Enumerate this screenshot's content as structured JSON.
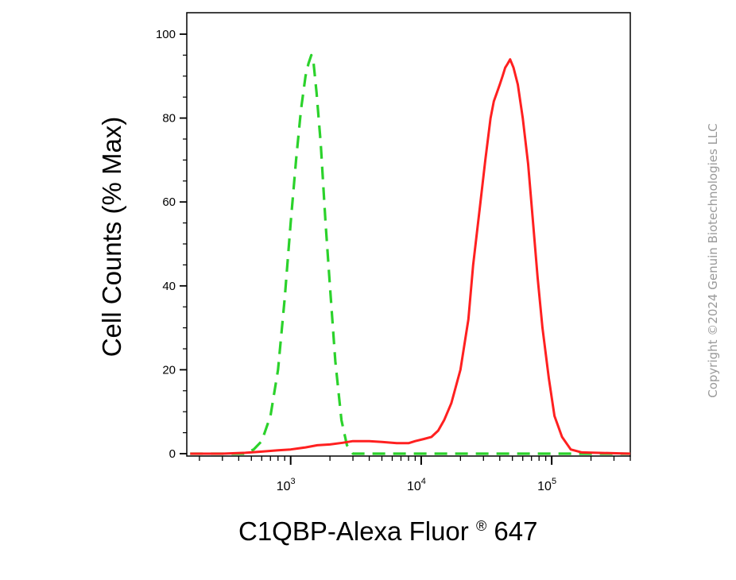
{
  "chart_data": {
    "type": "line",
    "title": "",
    "xlabel": "C1QBP-Alexa Fluor",
    "xlabel_mark": "®",
    "xlabel_suffix": " 647",
    "ylabel": "Cell Counts (% Max)",
    "x_scale": "log",
    "xlim": [
      160,
      400000
    ],
    "ylim": [
      0,
      104
    ],
    "y_ticks": [
      0,
      20,
      40,
      60,
      80,
      100
    ],
    "y_tick_labels": [
      "0",
      "20",
      "40",
      "60",
      "80",
      "100"
    ],
    "x_ticks": [
      1000,
      10000,
      100000
    ],
    "x_tick_labels": [
      {
        "base": "10",
        "exp": "3"
      },
      {
        "base": "10",
        "exp": "4"
      },
      {
        "base": "10",
        "exp": "5"
      }
    ],
    "grid": false,
    "legend": "none",
    "series": [
      {
        "color": "#2bd22b",
        "dash": true,
        "points": [
          [
            170,
            0
          ],
          [
            450,
            0
          ],
          [
            520,
            1
          ],
          [
            600,
            3
          ],
          [
            700,
            9
          ],
          [
            800,
            20
          ],
          [
            900,
            37
          ],
          [
            1000,
            55
          ],
          [
            1100,
            70
          ],
          [
            1200,
            82
          ],
          [
            1300,
            90
          ],
          [
            1370,
            93
          ],
          [
            1440,
            95
          ],
          [
            1500,
            93
          ],
          [
            1580,
            86
          ],
          [
            1700,
            74
          ],
          [
            1850,
            55
          ],
          [
            2000,
            40
          ],
          [
            2200,
            22
          ],
          [
            2450,
            8
          ],
          [
            2700,
            2
          ],
          [
            3000,
            0
          ],
          [
            400000,
            0
          ]
        ]
      },
      {
        "color": "#ff2020",
        "dash": false,
        "points": [
          [
            170,
            0
          ],
          [
            300,
            0
          ],
          [
            450,
            0.2
          ],
          [
            600,
            0.5
          ],
          [
            800,
            0.8
          ],
          [
            1000,
            1
          ],
          [
            1300,
            1.5
          ],
          [
            1600,
            2
          ],
          [
            2000,
            2.2
          ],
          [
            2500,
            2.6
          ],
          [
            3000,
            3
          ],
          [
            3500,
            3
          ],
          [
            4000,
            3
          ],
          [
            5000,
            2.8
          ],
          [
            6500,
            2.5
          ],
          [
            8000,
            2.5
          ],
          [
            9000,
            3
          ],
          [
            10500,
            3.5
          ],
          [
            12000,
            4
          ],
          [
            13500,
            5.5
          ],
          [
            15000,
            8
          ],
          [
            17000,
            12
          ],
          [
            20000,
            20
          ],
          [
            23000,
            32
          ],
          [
            25000,
            45
          ],
          [
            28000,
            58
          ],
          [
            31000,
            70
          ],
          [
            34000,
            80
          ],
          [
            36000,
            84
          ],
          [
            38000,
            86
          ],
          [
            40000,
            88
          ],
          [
            42000,
            90
          ],
          [
            44000,
            92
          ],
          [
            46000,
            93
          ],
          [
            48000,
            94
          ],
          [
            51000,
            92
          ],
          [
            55000,
            88
          ],
          [
            60000,
            80
          ],
          [
            66000,
            69
          ],
          [
            72000,
            55
          ],
          [
            78000,
            42
          ],
          [
            85000,
            30
          ],
          [
            95000,
            18
          ],
          [
            105000,
            9
          ],
          [
            120000,
            4
          ],
          [
            140000,
            1
          ],
          [
            170000,
            0.3
          ],
          [
            400000,
            0
          ]
        ]
      }
    ]
  },
  "watermark": "Copyright ©2024 Genuin Biotechnologies LLC"
}
